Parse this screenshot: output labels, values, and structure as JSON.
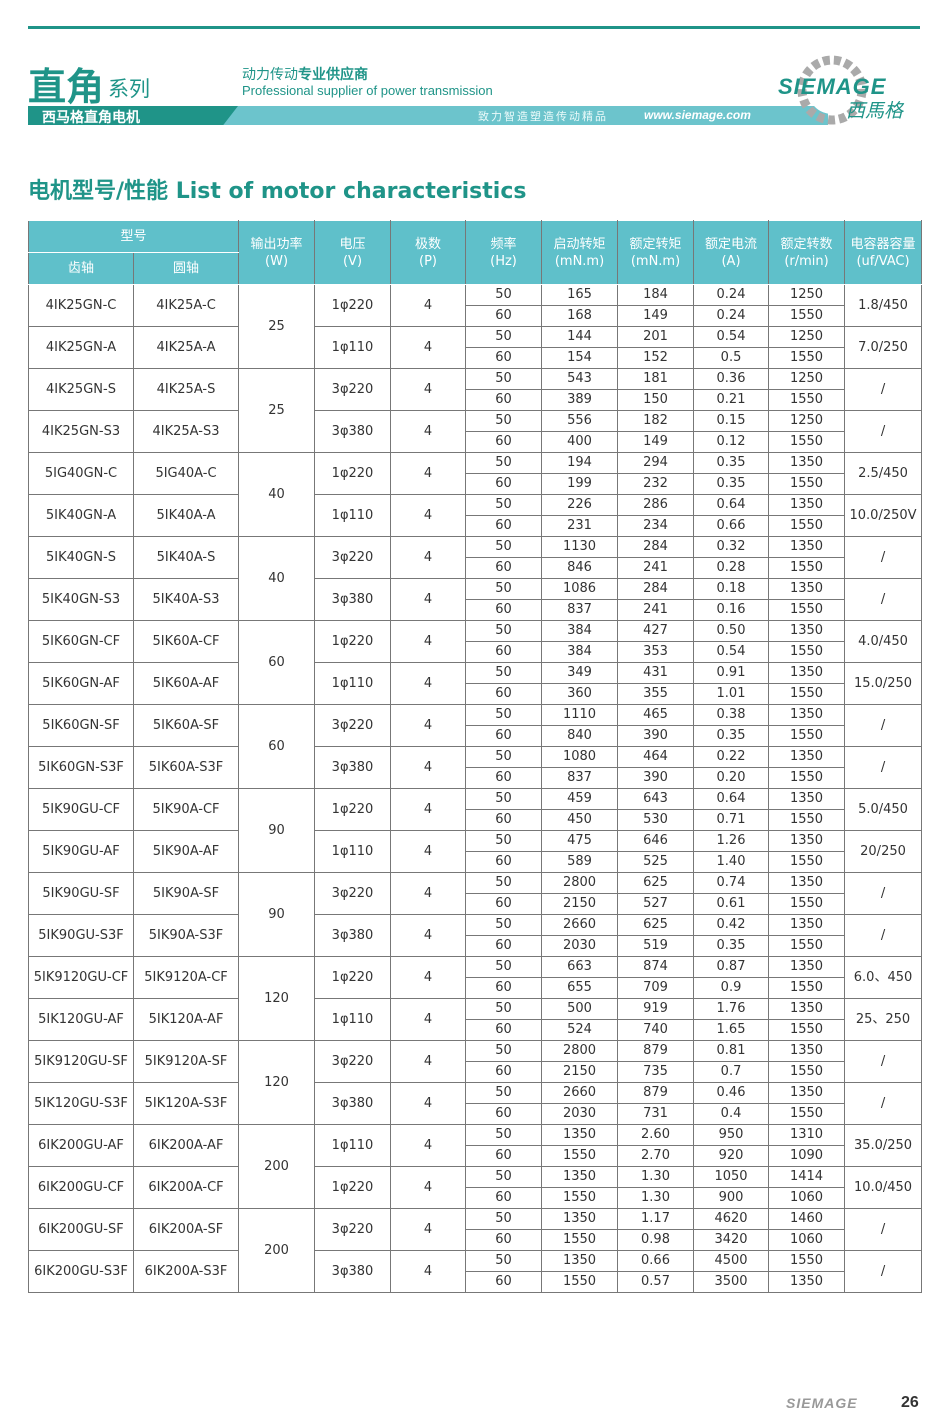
{
  "header": {
    "series_big": "直角",
    "series_small": "系列",
    "tagline_cn_light": "动力传动",
    "tagline_cn_bold": "专业供应商",
    "tagline_en": "Professional supplier of power transmission",
    "band_label": "西马格直角电机",
    "slogan": "致力智造塑造传动精品",
    "url": "www.siemage.com",
    "logo_text": "SIEMAGE",
    "logo_cn": "西馬格",
    "accent_color": "#1f9488",
    "header_fill_color": "#5fc0ca"
  },
  "title": "电机型号/性能 List of motor characteristics",
  "table": {
    "headers": {
      "model": "型号",
      "gear_shaft": "齿轴",
      "round_shaft": "圆轴",
      "power": [
        "输出功率",
        "(W)"
      ],
      "voltage": [
        "电压",
        "(V)"
      ],
      "poles": [
        "极数",
        "(P)"
      ],
      "frequency": [
        "频率",
        "(Hz)"
      ],
      "start_torque": [
        "启动转矩",
        "(mN.m)"
      ],
      "rated_torque": [
        "额定转矩",
        "(mN.m)"
      ],
      "rated_current": [
        "额定电流",
        "(A)"
      ],
      "rated_speed": [
        "额定转数",
        "(r/min)"
      ],
      "capacitor": [
        "电容器容量",
        "(uf/VAC)"
      ]
    },
    "groups": [
      {
        "power": "25",
        "models": [
          {
            "gear": "4IK25GN-C",
            "round": "4IK25A-C",
            "voltage": "1φ220",
            "poles": "4",
            "cap": "1.8/450",
            "rows": [
              [
                "50",
                "165",
                "184",
                "0.24",
                "1250"
              ],
              [
                "60",
                "168",
                "149",
                "0.24",
                "1550"
              ]
            ]
          },
          {
            "gear": "4IK25GN-A",
            "round": "4IK25A-A",
            "voltage": "1φ110",
            "poles": "4",
            "cap": "7.0/250",
            "rows": [
              [
                "50",
                "144",
                "201",
                "0.54",
                "1250"
              ],
              [
                "60",
                "154",
                "152",
                "0.5",
                "1550"
              ]
            ]
          }
        ]
      },
      {
        "power": "25",
        "models": [
          {
            "gear": "4IK25GN-S",
            "round": "4IK25A-S",
            "voltage": "3φ220",
            "poles": "4",
            "cap": "/",
            "rows": [
              [
                "50",
                "543",
                "181",
                "0.36",
                "1250"
              ],
              [
                "60",
                "389",
                "150",
                "0.21",
                "1550"
              ]
            ]
          },
          {
            "gear": "4IK25GN-S3",
            "round": "4IK25A-S3",
            "voltage": "3φ380",
            "poles": "4",
            "cap": "/",
            "rows": [
              [
                "50",
                "556",
                "182",
                "0.15",
                "1250"
              ],
              [
                "60",
                "400",
                "149",
                "0.12",
                "1550"
              ]
            ]
          }
        ]
      },
      {
        "power": "40",
        "models": [
          {
            "gear": "5IG40GN-C",
            "round": "5IG40A-C",
            "voltage": "1φ220",
            "poles": "4",
            "cap": "2.5/450",
            "rows": [
              [
                "50",
                "194",
                "294",
                "0.35",
                "1350"
              ],
              [
                "60",
                "199",
                "232",
                "0.35",
                "1550"
              ]
            ]
          },
          {
            "gear": "5IK40GN-A",
            "round": "5IK40A-A",
            "voltage": "1φ110",
            "poles": "4",
            "cap": "10.0/250V",
            "rows": [
              [
                "50",
                "226",
                "286",
                "0.64",
                "1350"
              ],
              [
                "60",
                "231",
                "234",
                "0.66",
                "1550"
              ]
            ]
          }
        ]
      },
      {
        "power": "40",
        "models": [
          {
            "gear": "5IK40GN-S",
            "round": "5IK40A-S",
            "voltage": "3φ220",
            "poles": "4",
            "cap": "/",
            "rows": [
              [
                "50",
                "1130",
                "284",
                "0.32",
                "1350"
              ],
              [
                "60",
                "846",
                "241",
                "0.28",
                "1550"
              ]
            ]
          },
          {
            "gear": "5IK40GN-S3",
            "round": "5IK40A-S3",
            "voltage": "3φ380",
            "poles": "4",
            "cap": "/",
            "rows": [
              [
                "50",
                "1086",
                "284",
                "0.18",
                "1350"
              ],
              [
                "60",
                "837",
                "241",
                "0.16",
                "1550"
              ]
            ]
          }
        ]
      },
      {
        "power": "60",
        "models": [
          {
            "gear": "5IK60GN-CF",
            "round": "5IK60A-CF",
            "voltage": "1φ220",
            "poles": "4",
            "cap": "4.0/450",
            "rows": [
              [
                "50",
                "384",
                "427",
                "0.50",
                "1350"
              ],
              [
                "60",
                "384",
                "353",
                "0.54",
                "1550"
              ]
            ]
          },
          {
            "gear": "5IK60GN-AF",
            "round": "5IK60A-AF",
            "voltage": "1φ110",
            "poles": "4",
            "cap": "15.0/250",
            "rows": [
              [
                "50",
                "349",
                "431",
                "0.91",
                "1350"
              ],
              [
                "60",
                "360",
                "355",
                "1.01",
                "1550"
              ]
            ]
          }
        ]
      },
      {
        "power": "60",
        "models": [
          {
            "gear": "5IK60GN-SF",
            "round": "5IK60A-SF",
            "voltage": "3φ220",
            "poles": "4",
            "cap": "/",
            "rows": [
              [
                "50",
                "1110",
                "465",
                "0.38",
                "1350"
              ],
              [
                "60",
                "840",
                "390",
                "0.35",
                "1550"
              ]
            ]
          },
          {
            "gear": "5IK60GN-S3F",
            "round": "5IK60A-S3F",
            "voltage": "3φ380",
            "poles": "4",
            "cap": "/",
            "rows": [
              [
                "50",
                "1080",
                "464",
                "0.22",
                "1350"
              ],
              [
                "60",
                "837",
                "390",
                "0.20",
                "1550"
              ]
            ]
          }
        ]
      },
      {
        "power": "90",
        "models": [
          {
            "gear": "5IK90GU-CF",
            "round": "5IK90A-CF",
            "voltage": "1φ220",
            "poles": "4",
            "cap": "5.0/450",
            "rows": [
              [
                "50",
                "459",
                "643",
                "0.64",
                "1350"
              ],
              [
                "60",
                "450",
                "530",
                "0.71",
                "1550"
              ]
            ]
          },
          {
            "gear": "5IK90GU-AF",
            "round": "5IK90A-AF",
            "voltage": "1φ110",
            "poles": "4",
            "cap": "20/250",
            "rows": [
              [
                "50",
                "475",
                "646",
                "1.26",
                "1350"
              ],
              [
                "60",
                "589",
                "525",
                "1.40",
                "1550"
              ]
            ]
          }
        ]
      },
      {
        "power": "90",
        "models": [
          {
            "gear": "5IK90GU-SF",
            "round": "5IK90A-SF",
            "voltage": "3φ220",
            "poles": "4",
            "cap": "/",
            "rows": [
              [
                "50",
                "2800",
                "625",
                "0.74",
                "1350"
              ],
              [
                "60",
                "2150",
                "527",
                "0.61",
                "1550"
              ]
            ]
          },
          {
            "gear": "5IK90GU-S3F",
            "round": "5IK90A-S3F",
            "voltage": "3φ380",
            "poles": "4",
            "cap": "/",
            "rows": [
              [
                "50",
                "2660",
                "625",
                "0.42",
                "1350"
              ],
              [
                "60",
                "2030",
                "519",
                "0.35",
                "1550"
              ]
            ]
          }
        ]
      },
      {
        "power": "120",
        "models": [
          {
            "gear": "5IK9120GU-CF",
            "round": "5IK9120A-CF",
            "voltage": "1φ220",
            "poles": "4",
            "cap": "6.0、450",
            "rows": [
              [
                "50",
                "663",
                "874",
                "0.87",
                "1350"
              ],
              [
                "60",
                "655",
                "709",
                "0.9",
                "1550"
              ]
            ]
          },
          {
            "gear": "5IK120GU-AF",
            "round": "5IK120A-AF",
            "voltage": "1φ110",
            "poles": "4",
            "cap": "25、250",
            "rows": [
              [
                "50",
                "500",
                "919",
                "1.76",
                "1350"
              ],
              [
                "60",
                "524",
                "740",
                "1.65",
                "1550"
              ]
            ]
          }
        ]
      },
      {
        "power": "120",
        "models": [
          {
            "gear": "5IK9120GU-SF",
            "round": "5IK9120A-SF",
            "voltage": "3φ220",
            "poles": "4",
            "cap": "/",
            "rows": [
              [
                "50",
                "2800",
                "879",
                "0.81",
                "1350"
              ],
              [
                "60",
                "2150",
                "735",
                "0.7",
                "1550"
              ]
            ]
          },
          {
            "gear": "5IK120GU-S3F",
            "round": "5IK120A-S3F",
            "voltage": "3φ380",
            "poles": "4",
            "cap": "/",
            "rows": [
              [
                "50",
                "2660",
                "879",
                "0.46",
                "1350"
              ],
              [
                "60",
                "2030",
                "731",
                "0.4",
                "1550"
              ]
            ]
          }
        ]
      },
      {
        "power": "200",
        "models": [
          {
            "gear": "6IK200GU-AF",
            "round": "6IK200A-AF",
            "voltage": "1φ110",
            "poles": "4",
            "cap": "35.0/250",
            "rows": [
              [
                "50",
                "1350",
                "2.60",
                "950",
                "1310"
              ],
              [
                "60",
                "1550",
                "2.70",
                "920",
                "1090"
              ]
            ]
          },
          {
            "gear": "6IK200GU-CF",
            "round": "6IK200A-CF",
            "voltage": "1φ220",
            "poles": "4",
            "cap": "10.0/450",
            "rows": [
              [
                "50",
                "1350",
                "1.30",
                "1050",
                "1414"
              ],
              [
                "60",
                "1550",
                "1.30",
                "900",
                "1060"
              ]
            ]
          }
        ]
      },
      {
        "power": "200",
        "models": [
          {
            "gear": "6IK200GU-SF",
            "round": "6IK200A-SF",
            "voltage": "3φ220",
            "poles": "4",
            "cap": "/",
            "rows": [
              [
                "50",
                "1350",
                "1.17",
                "4620",
                "1460"
              ],
              [
                "60",
                "1550",
                "0.98",
                "3420",
                "1060"
              ]
            ]
          },
          {
            "gear": "6IK200GU-S3F",
            "round": "6IK200A-S3F",
            "voltage": "3φ380",
            "poles": "4",
            "cap": "/",
            "rows": [
              [
                "50",
                "1350",
                "0.66",
                "4500",
                "1550"
              ],
              [
                "60",
                "1550",
                "0.57",
                "3500",
                "1350"
              ]
            ]
          }
        ]
      }
    ]
  },
  "footer": {
    "logo_text": "SIEMAGE",
    "page_number": "26"
  }
}
